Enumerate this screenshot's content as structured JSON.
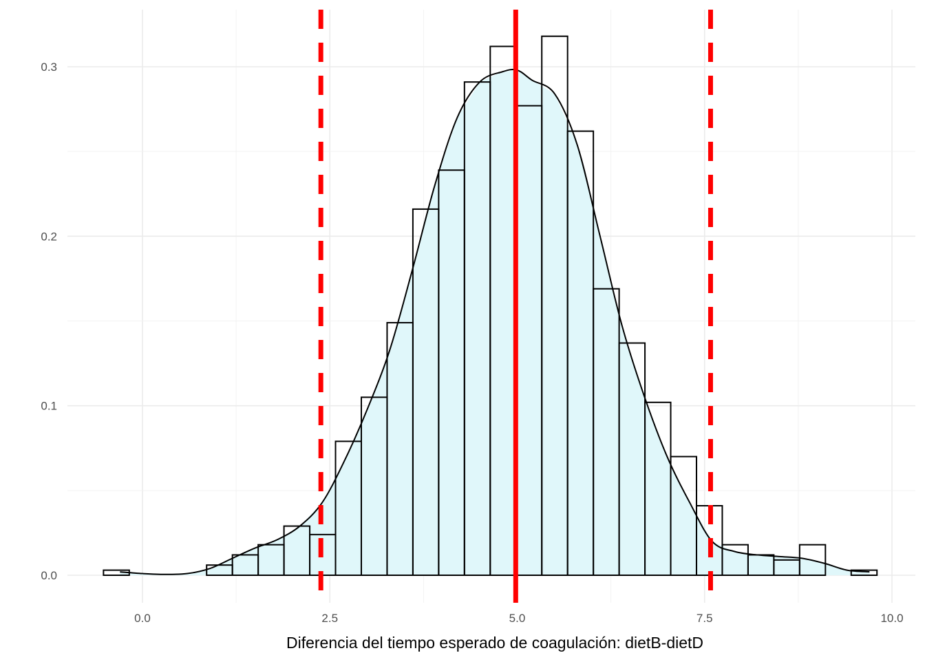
{
  "chart_data": {
    "type": "histogram",
    "title": "",
    "xlabel": "Diferencia del tiempo esperado de coagulación: dietB-dietD",
    "ylabel": "",
    "xlim": [
      -0.5,
      10.25
    ],
    "ylim": [
      -0.012,
      0.33
    ],
    "x_ticks": [
      0.0,
      2.5,
      5.0,
      7.5,
      10.0
    ],
    "x_tick_labels": [
      "0.0",
      "2.5",
      "5.0",
      "7.5",
      "10.0"
    ],
    "y_ticks": [
      0.0,
      0.1,
      0.2,
      0.3
    ],
    "y_tick_labels": [
      "0.0",
      "0.1",
      "0.2",
      "0.3"
    ],
    "grid": true,
    "legend": "none",
    "histogram": {
      "bin_width": 0.344,
      "bins": [
        {
          "x0": -0.52,
          "x1": -0.176,
          "density": 0.003
        },
        {
          "x0": -0.176,
          "x1": 0.168,
          "density": 0.0
        },
        {
          "x0": 0.168,
          "x1": 0.512,
          "density": 0.0
        },
        {
          "x0": 0.512,
          "x1": 0.856,
          "density": 0.0
        },
        {
          "x0": 0.856,
          "x1": 1.2,
          "density": 0.006
        },
        {
          "x0": 1.2,
          "x1": 1.544,
          "density": 0.012
        },
        {
          "x0": 1.544,
          "x1": 1.888,
          "density": 0.018
        },
        {
          "x0": 1.888,
          "x1": 2.232,
          "density": 0.029
        },
        {
          "x0": 2.232,
          "x1": 2.576,
          "density": 0.024
        },
        {
          "x0": 2.576,
          "x1": 2.92,
          "density": 0.079
        },
        {
          "x0": 2.92,
          "x1": 3.264,
          "density": 0.105
        },
        {
          "x0": 3.264,
          "x1": 3.608,
          "density": 0.149
        },
        {
          "x0": 3.608,
          "x1": 3.952,
          "density": 0.216
        },
        {
          "x0": 3.952,
          "x1": 4.296,
          "density": 0.239
        },
        {
          "x0": 4.296,
          "x1": 4.64,
          "density": 0.291
        },
        {
          "x0": 4.64,
          "x1": 4.984,
          "density": 0.312
        },
        {
          "x0": 4.984,
          "x1": 5.328,
          "density": 0.277
        },
        {
          "x0": 5.328,
          "x1": 5.672,
          "density": 0.318
        },
        {
          "x0": 5.672,
          "x1": 6.016,
          "density": 0.262
        },
        {
          "x0": 6.016,
          "x1": 6.36,
          "density": 0.169
        },
        {
          "x0": 6.36,
          "x1": 6.704,
          "density": 0.137
        },
        {
          "x0": 6.704,
          "x1": 7.048,
          "density": 0.102
        },
        {
          "x0": 7.048,
          "x1": 7.392,
          "density": 0.07
        },
        {
          "x0": 7.392,
          "x1": 7.736,
          "density": 0.041
        },
        {
          "x0": 7.736,
          "x1": 8.08,
          "density": 0.018
        },
        {
          "x0": 8.08,
          "x1": 8.424,
          "density": 0.012
        },
        {
          "x0": 8.424,
          "x1": 8.768,
          "density": 0.009
        },
        {
          "x0": 8.768,
          "x1": 9.112,
          "density": 0.018
        },
        {
          "x0": 9.112,
          "x1": 9.456,
          "density": 0.0
        },
        {
          "x0": 9.456,
          "x1": 9.8,
          "density": 0.003
        }
      ],
      "outline_color": "#000000"
    },
    "density_curve": {
      "color": "#000000",
      "fill": "#e0f7fa",
      "x": [
        -0.3,
        0.0,
        0.3,
        0.6,
        0.9,
        1.2,
        1.5,
        1.8,
        2.1,
        2.4,
        2.7,
        3.0,
        3.3,
        3.6,
        3.9,
        4.2,
        4.5,
        4.8,
        5.0,
        5.2,
        5.5,
        5.8,
        6.1,
        6.4,
        6.7,
        7.0,
        7.3,
        7.6,
        7.9,
        8.2,
        8.5,
        8.8,
        9.1,
        9.4,
        9.7
      ],
      "y": [
        0.002,
        0.001,
        0.0005,
        0.001,
        0.004,
        0.01,
        0.016,
        0.021,
        0.029,
        0.043,
        0.068,
        0.098,
        0.133,
        0.18,
        0.23,
        0.27,
        0.291,
        0.297,
        0.298,
        0.292,
        0.284,
        0.254,
        0.201,
        0.147,
        0.105,
        0.07,
        0.043,
        0.02,
        0.014,
        0.012,
        0.011,
        0.01,
        0.007,
        0.003,
        0.002
      ]
    },
    "vertical_lines": [
      {
        "x": 4.98,
        "style": "solid",
        "color": "#ff0000"
      },
      {
        "x": 2.38,
        "style": "dashed",
        "color": "#ff0000"
      },
      {
        "x": 7.58,
        "style": "dashed",
        "color": "#ff0000"
      }
    ]
  }
}
